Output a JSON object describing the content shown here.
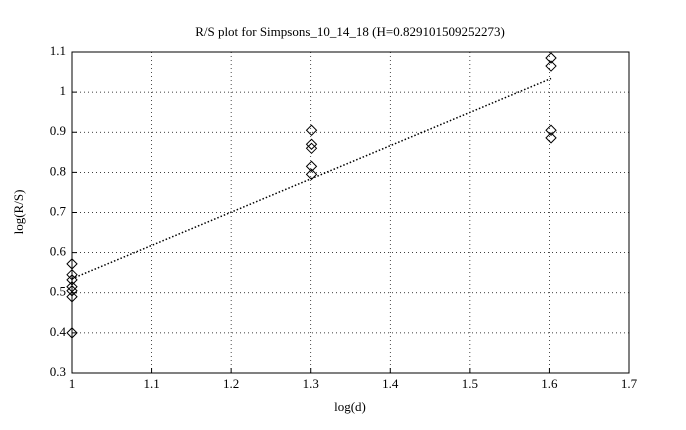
{
  "chart_data": {
    "type": "scatter",
    "title": "R/S plot for Simpsons_10_14_18 (H=0.829101509252273)",
    "x_label": "log(d)",
    "y_label": "log(R/S)",
    "xlim": [
      1,
      1.7
    ],
    "xticks": [
      1,
      1.1,
      1.2,
      1.3,
      1.4,
      1.5,
      1.6,
      1.7
    ],
    "ylim": [
      0.3,
      1.1
    ],
    "yticks": [
      0.3,
      0.4,
      0.5,
      0.6,
      0.7,
      0.8,
      0.9,
      1,
      1.1
    ],
    "grid": true,
    "series": [
      {
        "mode": "markers",
        "marker": "diamond",
        "color": "#000000",
        "x": [
          1,
          1,
          1,
          1,
          1,
          1,
          1,
          1.301,
          1.301,
          1.301,
          1.301,
          1.301,
          1.602,
          1.602,
          1.602,
          1.602
        ],
        "values": [
          0.572,
          0.545,
          0.532,
          0.515,
          0.505,
          0.49,
          0.4,
          0.905,
          0.87,
          0.86,
          0.815,
          0.795,
          1.085,
          1.065,
          0.905,
          0.886
        ]
      },
      {
        "mode": "line",
        "line_style": "dotted",
        "color": "#000000",
        "x": [
          1,
          1.602
        ],
        "values": [
          0.535,
          1.034
        ]
      }
    ]
  }
}
